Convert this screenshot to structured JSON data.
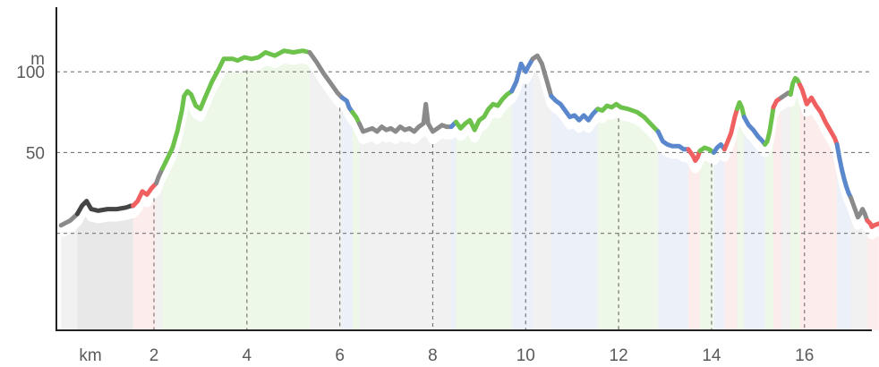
{
  "chart_data": {
    "type": "line",
    "title": "",
    "xlabel": "km",
    "ylabel": "m",
    "xlim": [
      -0.1,
      17.45
    ],
    "ylim": [
      -60,
      140
    ],
    "grid": {
      "horizontal": true,
      "vertical": true,
      "style": "dashed"
    },
    "x_ticks": [
      {
        "value": 2,
        "label": "2"
      },
      {
        "value": 4,
        "label": "4"
      },
      {
        "value": 6,
        "label": "6"
      },
      {
        "value": 8,
        "label": "8"
      },
      {
        "value": 10,
        "label": "10"
      },
      {
        "value": 12,
        "label": "12"
      },
      {
        "value": 14,
        "label": "14"
      },
      {
        "value": 16,
        "label": "16"
      }
    ],
    "y_ticks": [
      {
        "value": 50,
        "label": "50"
      },
      {
        "value": 100,
        "label": "100"
      }
    ],
    "grid_y_values": [
      0,
      50,
      100
    ],
    "colors": {
      "gray": "#8a8a8a",
      "dark": "#444444",
      "green": "#6cc24a",
      "blue": "#5b87cc",
      "red": "#f06060",
      "grid": "#777777",
      "axis": "#222222"
    },
    "segments": [
      {
        "color": "gray",
        "points": [
          [
            0,
            5
          ],
          [
            0.2,
            8
          ],
          [
            0.35,
            12
          ]
        ]
      },
      {
        "color": "dark",
        "points": [
          [
            0.35,
            12
          ],
          [
            0.45,
            17
          ],
          [
            0.55,
            20
          ],
          [
            0.65,
            15
          ],
          [
            0.8,
            14
          ],
          [
            1,
            15
          ],
          [
            1.2,
            15
          ],
          [
            1.4,
            16
          ],
          [
            1.5,
            17
          ],
          [
            1.55,
            17
          ]
        ]
      },
      {
        "color": "red",
        "points": [
          [
            1.55,
            17
          ],
          [
            1.65,
            20
          ],
          [
            1.75,
            26
          ],
          [
            1.85,
            24
          ],
          [
            1.95,
            28
          ],
          [
            2.05,
            31
          ]
        ]
      },
      {
        "color": "gray",
        "points": [
          [
            2.05,
            31
          ],
          [
            2.1,
            35
          ],
          [
            2.18,
            40
          ]
        ]
      },
      {
        "color": "green",
        "points": [
          [
            2.18,
            40
          ],
          [
            2.3,
            47
          ],
          [
            2.4,
            53
          ],
          [
            2.5,
            63
          ],
          [
            2.6,
            76
          ],
          [
            2.65,
            85
          ],
          [
            2.72,
            88
          ],
          [
            2.8,
            86
          ],
          [
            2.9,
            79
          ],
          [
            3,
            77
          ],
          [
            3.1,
            84
          ],
          [
            3.25,
            94
          ],
          [
            3.4,
            102
          ],
          [
            3.5,
            108
          ],
          [
            3.7,
            108
          ],
          [
            3.8,
            107
          ],
          [
            3.95,
            109
          ],
          [
            4.1,
            108
          ],
          [
            4.25,
            109
          ],
          [
            4.4,
            112
          ],
          [
            4.6,
            110
          ],
          [
            4.8,
            113
          ],
          [
            5,
            112
          ],
          [
            5.2,
            113
          ],
          [
            5.35,
            112
          ]
        ]
      },
      {
        "color": "gray",
        "points": [
          [
            5.35,
            112
          ],
          [
            5.5,
            106
          ],
          [
            5.65,
            99
          ],
          [
            5.8,
            93
          ],
          [
            5.95,
            87
          ],
          [
            6.05,
            84
          ]
        ]
      },
      {
        "color": "blue",
        "points": [
          [
            6.05,
            84
          ],
          [
            6.15,
            82
          ],
          [
            6.2,
            78
          ],
          [
            6.27,
            75
          ]
        ]
      },
      {
        "color": "green",
        "points": [
          [
            6.27,
            75
          ],
          [
            6.35,
            72
          ],
          [
            6.42,
            68
          ]
        ]
      },
      {
        "color": "gray",
        "points": [
          [
            6.42,
            68
          ],
          [
            6.5,
            63
          ],
          [
            6.6,
            64
          ],
          [
            6.7,
            65
          ],
          [
            6.8,
            63
          ],
          [
            6.9,
            66
          ],
          [
            7,
            64
          ],
          [
            7.1,
            65
          ],
          [
            7.2,
            63
          ],
          [
            7.3,
            66
          ],
          [
            7.4,
            64
          ],
          [
            7.5,
            65
          ],
          [
            7.6,
            63
          ],
          [
            7.7,
            66
          ],
          [
            7.8,
            68
          ],
          [
            7.85,
            80
          ],
          [
            7.9,
            68
          ],
          [
            8,
            63
          ],
          [
            8.1,
            65
          ],
          [
            8.2,
            67
          ],
          [
            8.3,
            66
          ],
          [
            8.4,
            66
          ]
        ]
      },
      {
        "color": "blue",
        "points": [
          [
            8.4,
            66
          ],
          [
            8.5,
            69
          ]
        ]
      },
      {
        "color": "green",
        "points": [
          [
            8.5,
            69
          ],
          [
            8.6,
            65
          ],
          [
            8.7,
            68
          ],
          [
            8.8,
            70
          ],
          [
            8.9,
            64
          ],
          [
            9,
            70
          ],
          [
            9.1,
            72
          ],
          [
            9.2,
            77
          ],
          [
            9.3,
            80
          ],
          [
            9.4,
            79
          ],
          [
            9.5,
            83
          ],
          [
            9.6,
            86
          ],
          [
            9.7,
            88
          ]
        ]
      },
      {
        "color": "blue",
        "points": [
          [
            9.7,
            88
          ],
          [
            9.8,
            94
          ],
          [
            9.9,
            105
          ],
          [
            10,
            100
          ],
          [
            10.05,
            103
          ],
          [
            10.15,
            108
          ]
        ]
      },
      {
        "color": "gray",
        "points": [
          [
            10.15,
            108
          ],
          [
            10.25,
            110
          ],
          [
            10.35,
            105
          ],
          [
            10.45,
            95
          ],
          [
            10.5,
            90
          ],
          [
            10.55,
            85
          ]
        ]
      },
      {
        "color": "blue",
        "points": [
          [
            10.55,
            85
          ],
          [
            10.65,
            82
          ],
          [
            10.75,
            80
          ],
          [
            10.85,
            76
          ],
          [
            10.95,
            72
          ],
          [
            11.05,
            73
          ],
          [
            11.15,
            70
          ],
          [
            11.25,
            73
          ],
          [
            11.35,
            70
          ],
          [
            11.45,
            74
          ],
          [
            11.55,
            77
          ]
        ]
      },
      {
        "color": "green",
        "points": [
          [
            11.55,
            77
          ],
          [
            11.65,
            76
          ],
          [
            11.75,
            79
          ],
          [
            11.85,
            78
          ],
          [
            11.95,
            80
          ],
          [
            12.05,
            78
          ],
          [
            12.2,
            77
          ],
          [
            12.4,
            75
          ],
          [
            12.55,
            72
          ],
          [
            12.65,
            69
          ],
          [
            12.75,
            66
          ],
          [
            12.85,
            63
          ]
        ]
      },
      {
        "color": "blue",
        "points": [
          [
            12.85,
            63
          ],
          [
            12.95,
            57
          ],
          [
            13.05,
            55
          ],
          [
            13.15,
            54
          ],
          [
            13.3,
            54
          ],
          [
            13.4,
            52
          ],
          [
            13.5,
            52
          ]
        ]
      },
      {
        "color": "red",
        "points": [
          [
            13.5,
            52
          ],
          [
            13.6,
            48
          ],
          [
            13.65,
            45
          ],
          [
            13.7,
            47
          ],
          [
            13.75,
            51
          ]
        ]
      },
      {
        "color": "green",
        "points": [
          [
            13.75,
            51
          ],
          [
            13.85,
            53
          ],
          [
            13.95,
            52
          ],
          [
            14.05,
            50
          ]
        ]
      },
      {
        "color": "blue",
        "points": [
          [
            14.05,
            50
          ],
          [
            14.12,
            53
          ],
          [
            14.2,
            55
          ],
          [
            14.28,
            52
          ]
        ]
      },
      {
        "color": "red",
        "points": [
          [
            14.28,
            52
          ],
          [
            14.35,
            57
          ],
          [
            14.42,
            62
          ],
          [
            14.5,
            72
          ],
          [
            14.55,
            77
          ]
        ]
      },
      {
        "color": "green",
        "points": [
          [
            14.55,
            77
          ],
          [
            14.6,
            81
          ],
          [
            14.65,
            78
          ],
          [
            14.7,
            72
          ]
        ]
      },
      {
        "color": "blue",
        "points": [
          [
            14.7,
            72
          ],
          [
            14.8,
            67
          ],
          [
            14.9,
            64
          ],
          [
            15,
            60
          ],
          [
            15.1,
            57
          ],
          [
            15.15,
            55
          ]
        ]
      },
      {
        "color": "green",
        "points": [
          [
            15.15,
            55
          ],
          [
            15.2,
            57
          ],
          [
            15.25,
            63
          ],
          [
            15.3,
            72
          ],
          [
            15.33,
            78
          ]
        ]
      },
      {
        "color": "red",
        "points": [
          [
            15.33,
            78
          ],
          [
            15.4,
            82
          ],
          [
            15.5,
            84
          ]
        ]
      },
      {
        "color": "gray",
        "points": [
          [
            15.5,
            84
          ],
          [
            15.6,
            86
          ],
          [
            15.65,
            87
          ],
          [
            15.7,
            86
          ]
        ]
      },
      {
        "color": "green",
        "points": [
          [
            15.7,
            86
          ],
          [
            15.75,
            93
          ],
          [
            15.8,
            96
          ],
          [
            15.85,
            95
          ],
          [
            15.9,
            92
          ]
        ]
      },
      {
        "color": "red",
        "points": [
          [
            15.9,
            92
          ],
          [
            15.95,
            89
          ],
          [
            16.05,
            80
          ],
          [
            16.15,
            84
          ],
          [
            16.25,
            79
          ],
          [
            16.35,
            75
          ],
          [
            16.45,
            69
          ],
          [
            16.55,
            64
          ],
          [
            16.65,
            59
          ],
          [
            16.7,
            55
          ]
        ]
      },
      {
        "color": "blue",
        "points": [
          [
            16.7,
            55
          ],
          [
            16.75,
            47
          ],
          [
            16.8,
            40
          ],
          [
            16.85,
            34
          ],
          [
            16.9,
            29
          ],
          [
            16.95,
            25
          ],
          [
            17,
            22
          ]
        ]
      },
      {
        "color": "gray",
        "points": [
          [
            17,
            22
          ],
          [
            17.05,
            18
          ],
          [
            17.1,
            14
          ],
          [
            17.15,
            10
          ],
          [
            17.2,
            12
          ],
          [
            17.25,
            15
          ],
          [
            17.3,
            12
          ],
          [
            17.35,
            8
          ]
        ]
      },
      {
        "color": "red",
        "points": [
          [
            17.35,
            8
          ],
          [
            17.42,
            6
          ],
          [
            17.45,
            4
          ],
          [
            17.5,
            5
          ],
          [
            17.6,
            6
          ]
        ]
      }
    ]
  }
}
